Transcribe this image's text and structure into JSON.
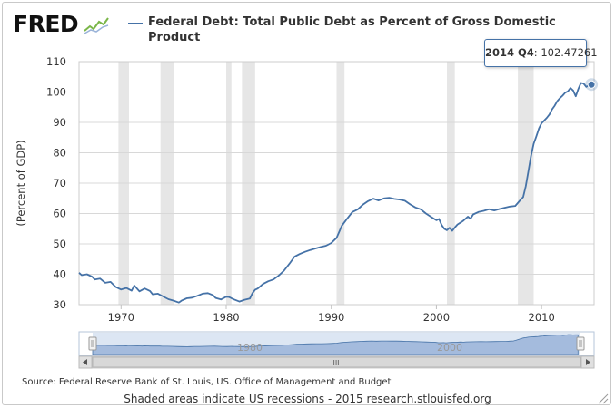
{
  "brand": {
    "logo_text": "FRED"
  },
  "legend": {
    "series_label": "Federal Debt: Total Public Debt as Percent of Gross Domestic Product"
  },
  "tooltip": {
    "period": "2014 Q4",
    "value": "102.47261"
  },
  "navigator": {
    "labels": [
      "1980",
      "2000"
    ],
    "scroll_glyph": "III"
  },
  "footer": {
    "source": "Source: Federal Reserve Bank of St. Louis, US. Office of Management and Budget",
    "note": "Shaded areas indicate US recessions - 2015 research.stlouisfed.org"
  },
  "colors": {
    "series": "#4572a7",
    "recession": "#e6e6e6",
    "navigator_fill": "#9ab3d8",
    "navigator_bg": "#dce6f3"
  },
  "chart_data": {
    "type": "line",
    "title": "Federal Debt: Total Public Debt as Percent of Gross Domestic Product",
    "xlabel": "",
    "ylabel": "(Percent of GDP)",
    "xlim": [
      1966.0,
      2015.0
    ],
    "ylim": [
      30,
      110
    ],
    "y_ticks": [
      30,
      40,
      50,
      60,
      70,
      80,
      90,
      100,
      110
    ],
    "x_ticks": [
      1970,
      1980,
      1990,
      2000,
      2010
    ],
    "grid": true,
    "recessions": [
      [
        1969.75,
        1970.75
      ],
      [
        1973.75,
        1975.0
      ],
      [
        1980.0,
        1980.5
      ],
      [
        1981.5,
        1982.75
      ],
      [
        1990.5,
        1991.25
      ],
      [
        2001.0,
        2001.75
      ],
      [
        2007.75,
        2009.25
      ]
    ],
    "series": [
      {
        "name": "Federal Debt: Total Public Debt as Percent of Gross Domestic Product",
        "points": [
          [
            1966.0,
            40.5
          ],
          [
            1966.25,
            39.7
          ],
          [
            1966.75,
            40.0
          ],
          [
            1967.25,
            39.2
          ],
          [
            1967.5,
            38.3
          ],
          [
            1968.0,
            38.6
          ],
          [
            1968.5,
            37.2
          ],
          [
            1969.0,
            37.5
          ],
          [
            1969.5,
            35.8
          ],
          [
            1970.0,
            35.0
          ],
          [
            1970.5,
            35.5
          ],
          [
            1971.0,
            34.6
          ],
          [
            1971.25,
            36.3
          ],
          [
            1971.75,
            34.4
          ],
          [
            1972.25,
            35.3
          ],
          [
            1972.75,
            34.5
          ],
          [
            1973.0,
            33.4
          ],
          [
            1973.5,
            33.6
          ],
          [
            1974.0,
            32.7
          ],
          [
            1974.5,
            31.8
          ],
          [
            1975.0,
            31.3
          ],
          [
            1975.5,
            30.7
          ],
          [
            1975.75,
            31.3
          ],
          [
            1976.25,
            32.1
          ],
          [
            1976.75,
            32.3
          ],
          [
            1977.25,
            32.9
          ],
          [
            1977.75,
            33.6
          ],
          [
            1978.25,
            33.8
          ],
          [
            1978.75,
            33.1
          ],
          [
            1979.0,
            32.2
          ],
          [
            1979.5,
            31.7
          ],
          [
            1980.0,
            32.6
          ],
          [
            1980.25,
            32.5
          ],
          [
            1980.75,
            31.7
          ],
          [
            1981.25,
            31.0
          ],
          [
            1981.75,
            31.6
          ],
          [
            1982.25,
            32.0
          ],
          [
            1982.5,
            33.8
          ],
          [
            1982.75,
            34.9
          ],
          [
            1983.0,
            35.3
          ],
          [
            1983.5,
            36.8
          ],
          [
            1984.0,
            37.7
          ],
          [
            1984.5,
            38.3
          ],
          [
            1985.0,
            39.6
          ],
          [
            1985.5,
            41.2
          ],
          [
            1986.0,
            43.4
          ],
          [
            1986.5,
            45.8
          ],
          [
            1987.0,
            46.7
          ],
          [
            1987.5,
            47.4
          ],
          [
            1988.0,
            48.0
          ],
          [
            1988.5,
            48.5
          ],
          [
            1989.0,
            49.0
          ],
          [
            1989.5,
            49.4
          ],
          [
            1990.0,
            50.3
          ],
          [
            1990.5,
            52.0
          ],
          [
            1990.75,
            54.0
          ],
          [
            1991.0,
            56.0
          ],
          [
            1991.5,
            58.3
          ],
          [
            1992.0,
            60.5
          ],
          [
            1992.5,
            61.3
          ],
          [
            1993.0,
            62.9
          ],
          [
            1993.5,
            64.1
          ],
          [
            1994.0,
            64.9
          ],
          [
            1994.5,
            64.3
          ],
          [
            1995.0,
            65.0
          ],
          [
            1995.5,
            65.2
          ],
          [
            1996.0,
            64.8
          ],
          [
            1996.5,
            64.6
          ],
          [
            1997.0,
            64.2
          ],
          [
            1997.5,
            63.0
          ],
          [
            1998.0,
            62.0
          ],
          [
            1998.5,
            61.4
          ],
          [
            1999.0,
            60.0
          ],
          [
            1999.5,
            58.9
          ],
          [
            2000.0,
            57.8
          ],
          [
            2000.25,
            58.2
          ],
          [
            2000.5,
            56.2
          ],
          [
            2000.75,
            55.0
          ],
          [
            2001.0,
            54.5
          ],
          [
            2001.25,
            55.3
          ],
          [
            2001.5,
            54.3
          ],
          [
            2001.75,
            55.4
          ],
          [
            2002.0,
            56.4
          ],
          [
            2002.5,
            57.5
          ],
          [
            2003.0,
            59.0
          ],
          [
            2003.25,
            58.3
          ],
          [
            2003.5,
            59.7
          ],
          [
            2004.0,
            60.5
          ],
          [
            2004.5,
            60.9
          ],
          [
            2005.0,
            61.4
          ],
          [
            2005.5,
            61.0
          ],
          [
            2006.0,
            61.5
          ],
          [
            2006.5,
            61.9
          ],
          [
            2007.0,
            62.3
          ],
          [
            2007.5,
            62.5
          ],
          [
            2008.0,
            64.5
          ],
          [
            2008.25,
            65.4
          ],
          [
            2008.5,
            69.0
          ],
          [
            2008.75,
            74.0
          ],
          [
            2009.0,
            79.0
          ],
          [
            2009.25,
            83.0
          ],
          [
            2009.5,
            85.4
          ],
          [
            2009.75,
            88.0
          ],
          [
            2010.0,
            89.7
          ],
          [
            2010.5,
            91.5
          ],
          [
            2010.75,
            92.6
          ],
          [
            2011.0,
            94.3
          ],
          [
            2011.25,
            95.5
          ],
          [
            2011.5,
            97.0
          ],
          [
            2011.75,
            98.0
          ],
          [
            2012.0,
            98.8
          ],
          [
            2012.25,
            99.8
          ],
          [
            2012.5,
            100.2
          ],
          [
            2012.75,
            101.3
          ],
          [
            2013.0,
            100.5
          ],
          [
            2013.25,
            98.6
          ],
          [
            2013.5,
            101.0
          ],
          [
            2013.75,
            103.0
          ],
          [
            2014.0,
            102.8
          ],
          [
            2014.25,
            101.7
          ],
          [
            2014.5,
            102.2
          ],
          [
            2014.75,
            102.47
          ]
        ]
      }
    ],
    "highlight": {
      "x": 2014.75,
      "y": 102.47,
      "label": "2014 Q4"
    }
  }
}
